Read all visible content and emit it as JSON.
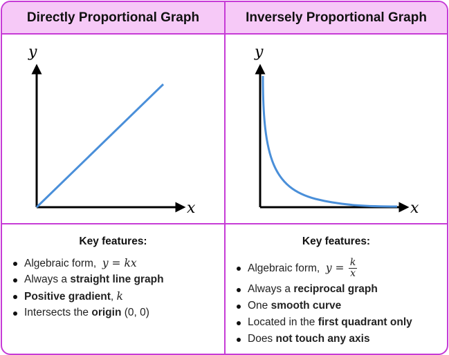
{
  "left": {
    "title": "Directly Proportional Graph",
    "axis_x": "x",
    "axis_y": "y",
    "features_title": "Key features:",
    "features": [
      {
        "pre": "Algebraic form,",
        "math": "y = kx"
      },
      {
        "pre": "Always a",
        "bold": "straight line graph"
      },
      {
        "bold": "Positive gradient",
        "post": ",",
        "math": "k"
      },
      {
        "pre": "Intersects the",
        "bold": "origin",
        "post": "(0, 0)"
      }
    ]
  },
  "right": {
    "title": "Inversely Proportional Graph",
    "axis_x": "x",
    "axis_y": "y",
    "features_title": "Key features:",
    "algebraic": {
      "pre": "Algebraic form,",
      "lhs": "y =",
      "num": "k",
      "den": "x"
    },
    "features": [
      {
        "pre": "Always a",
        "bold": "reciprocal graph"
      },
      {
        "pre": "One",
        "bold": "smooth curve"
      },
      {
        "pre": "Located in the",
        "bold": "first quadrant only"
      },
      {
        "pre": "Does",
        "bold": "not touch any axis"
      }
    ]
  },
  "colors": {
    "accent": "#c63bd6",
    "header_bg": "#f6c9f7",
    "line": "#4a8fd9",
    "axis": "#000000"
  }
}
